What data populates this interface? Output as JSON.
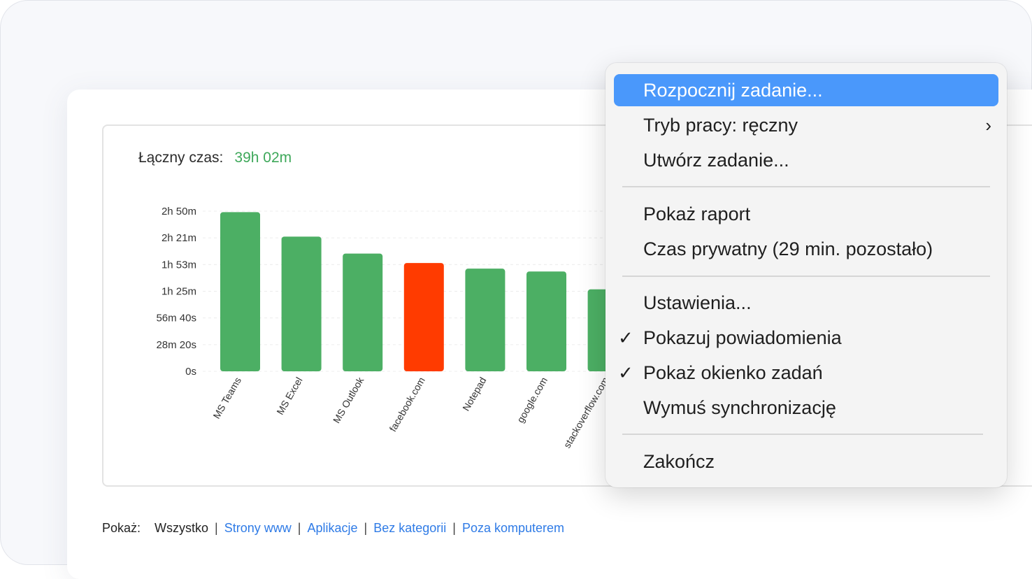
{
  "summary": {
    "label": "Łączny czas:",
    "value": "39h 02m"
  },
  "colors": {
    "green": "#4caf64",
    "red": "#ff3b00",
    "accent": "#4a98fb",
    "link": "#2f7be6"
  },
  "chart_data": {
    "type": "bar",
    "y_ticks": [
      "0s",
      "28m 20s",
      "56m 40s",
      "1h 25m",
      "1h 53m",
      "2h 21m",
      "2h 50m"
    ],
    "ylim_minutes": [
      0,
      170
    ],
    "categories": [
      "MS Teams",
      "MS Excel",
      "MS Outlook",
      "facebook.com",
      "Notepad",
      "google.com",
      "stackoverflow.com"
    ],
    "values_minutes": [
      169,
      143,
      125,
      115,
      109,
      106,
      87
    ],
    "highlight": [
      "green",
      "green",
      "green",
      "red",
      "green",
      "green",
      "green"
    ],
    "grid": true
  },
  "filters": {
    "label": "Pokaż:",
    "items": [
      {
        "text": "Wszystko",
        "link": false
      },
      {
        "text": "Strony www",
        "link": true
      },
      {
        "text": "Aplikacje",
        "link": true
      },
      {
        "text": "Bez kategorii",
        "link": true
      },
      {
        "text": "Poza komputerem",
        "link": true
      }
    ]
  },
  "menu": {
    "start_task": "Rozpocznij zadanie...",
    "work_mode": "Tryb pracy: ręczny",
    "create_task": "Utwórz zadanie...",
    "show_report": "Pokaż raport",
    "private_time": "Czas prywatny (29 min. pozostało)",
    "settings": "Ustawienia...",
    "show_notifications": "Pokazuj powiadomienia",
    "show_task_window": "Pokaż okienko zadań",
    "force_sync": "Wymuś synchronizację",
    "quit": "Zakończ",
    "check_glyph": "✓",
    "submenu_glyph": "›"
  }
}
